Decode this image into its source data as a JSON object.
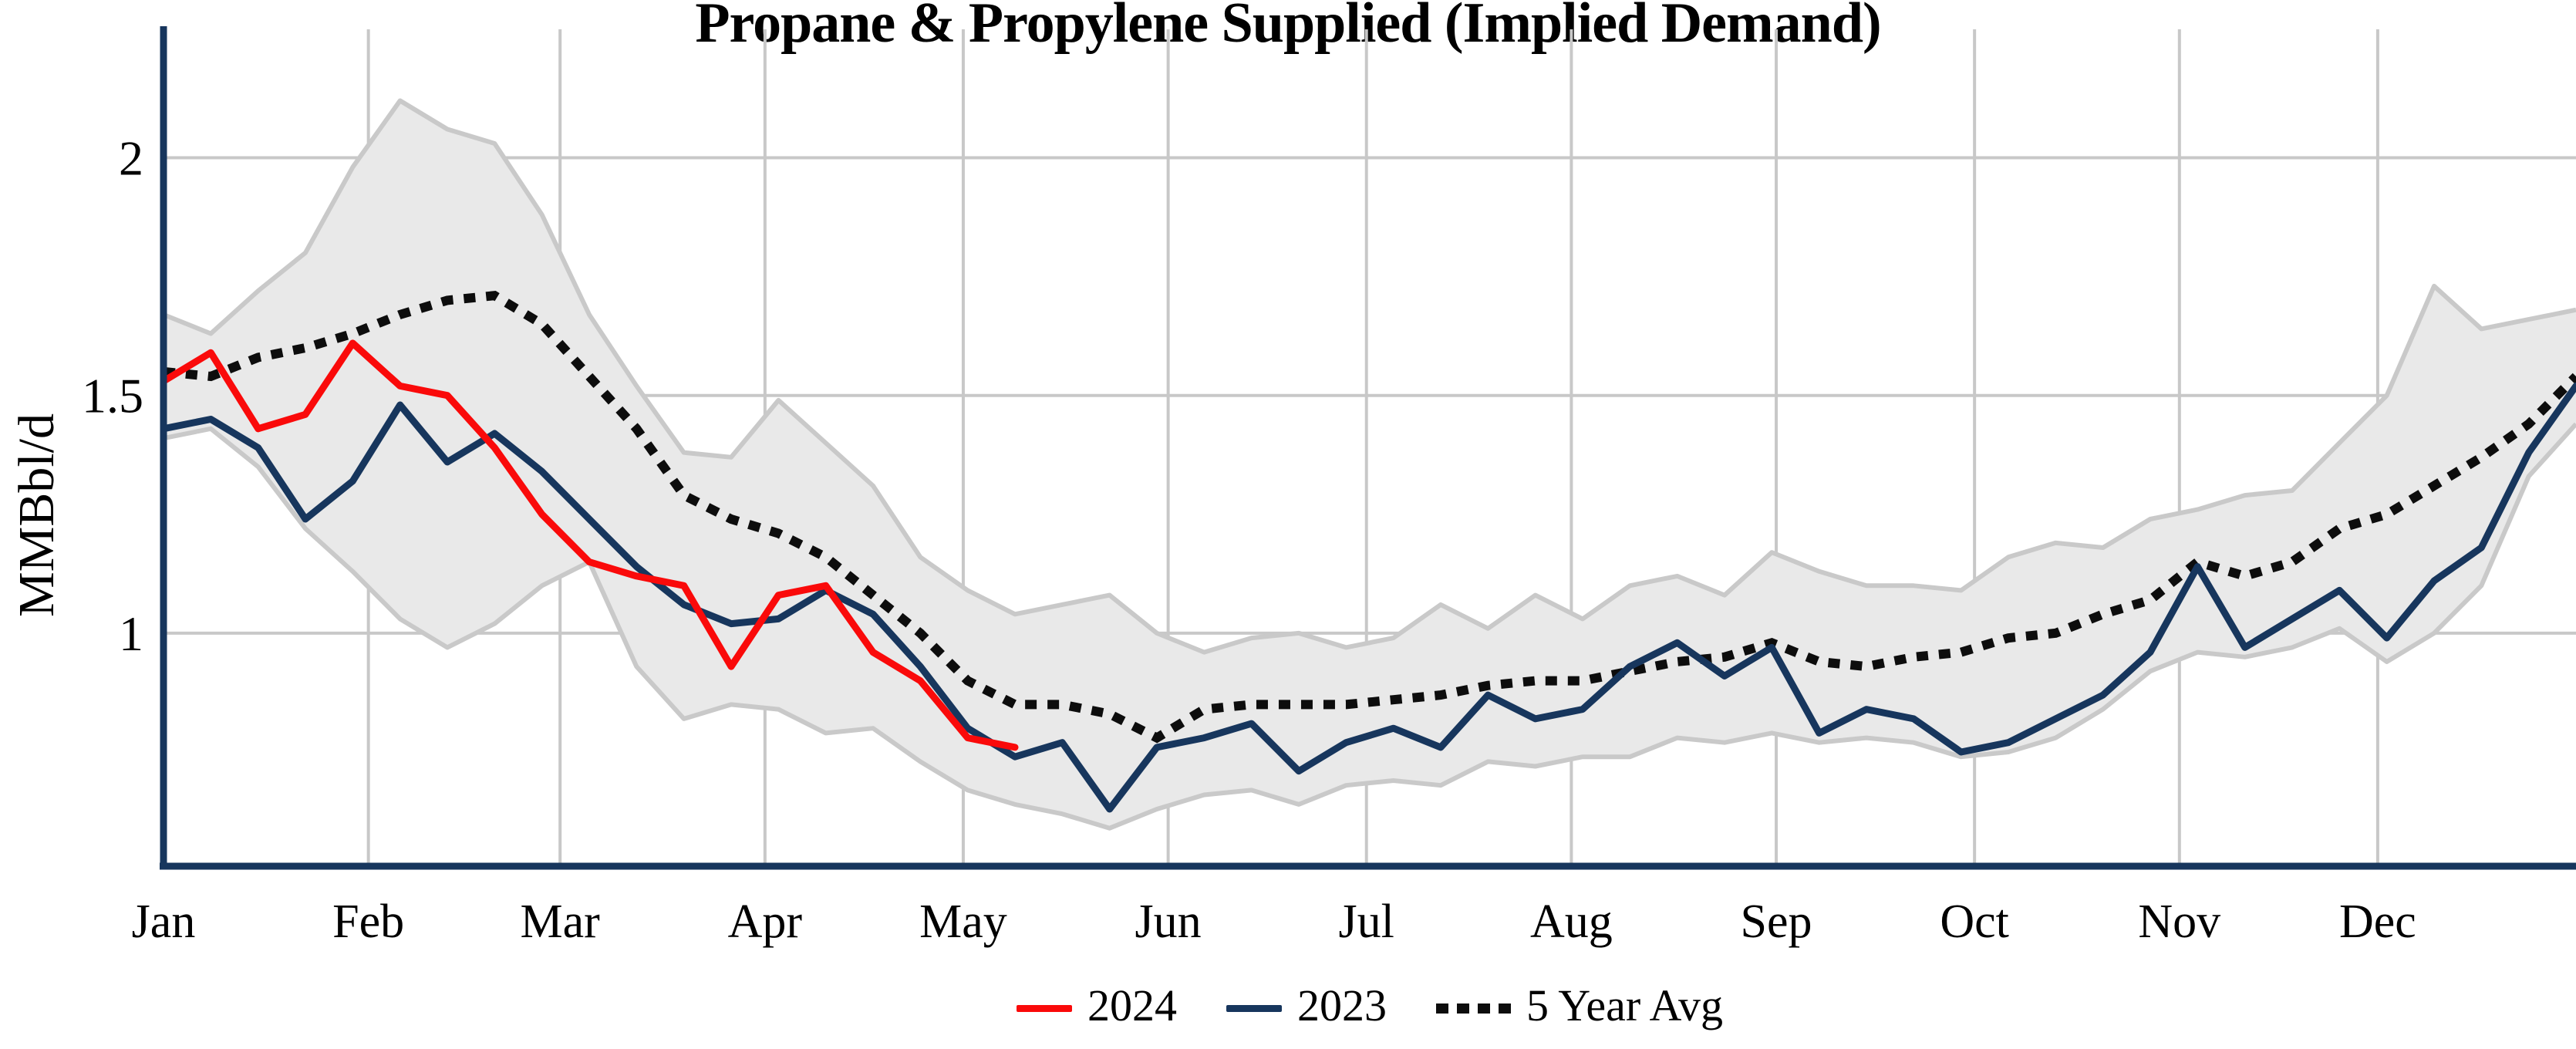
{
  "title": "Propane & Propylene Supplied (Implied Demand)",
  "y_axis": {
    "label": "MMBbl/d",
    "ticks": [
      {
        "label": "2",
        "value": 2.0
      },
      {
        "label": "1.5",
        "value": 1.5
      },
      {
        "label": "1",
        "value": 1.0
      }
    ]
  },
  "x_axis": {
    "months": [
      "Jan",
      "Feb",
      "Mar",
      "Apr",
      "May",
      "Jun",
      "Jul",
      "Aug",
      "Sep",
      "Oct",
      "Nov",
      "Dec"
    ]
  },
  "legend": {
    "items": [
      {
        "label": "2024",
        "style": "solid",
        "color": "#fa0a0a"
      },
      {
        "label": "2023",
        "style": "solid",
        "color": "#17365d"
      },
      {
        "label": "5 Year Avg",
        "style": "dotted",
        "color": "#0d0d0d"
      }
    ]
  },
  "colors": {
    "series_2024": "#fa0a0a",
    "series_2023": "#17365d",
    "series_avg": "#0d0d0d",
    "band_fill": "#e9e9e9",
    "band_edge": "#c9c9c9",
    "gridline": "#c8c8c8",
    "axis": "#17365d",
    "text": "#000000",
    "background": "#ffffff"
  },
  "chart_data": {
    "type": "line",
    "title": "Propane & Propylene Supplied (Implied Demand)",
    "xlabel": "",
    "ylabel": "MMBbl/d",
    "x_unit": "weekly, Jan through Dec",
    "ylim": [
      0.51,
      2.27
    ],
    "yticks": [
      1.0,
      1.5,
      2.0
    ],
    "grid": true,
    "legend_position": "bottom",
    "band": {
      "name": "5 year range",
      "upper": [
        1.67,
        1.63,
        1.72,
        1.8,
        1.98,
        2.12,
        2.06,
        2.03,
        1.88,
        1.67,
        1.52,
        1.38,
        1.37,
        1.49,
        1.4,
        1.31,
        1.16,
        1.09,
        1.04,
        1.06,
        1.08,
        1.0,
        0.96,
        0.99,
        1.0,
        0.97,
        0.99,
        1.06,
        1.01,
        1.08,
        1.03,
        1.1,
        1.12,
        1.08,
        1.17,
        1.13,
        1.1,
        1.1,
        1.09,
        1.16,
        1.19,
        1.18,
        1.24,
        1.26,
        1.29,
        1.3,
        1.4,
        1.5,
        1.73,
        1.64,
        1.66,
        1.68
      ],
      "lower": [
        1.41,
        1.43,
        1.35,
        1.22,
        1.13,
        1.03,
        0.97,
        1.02,
        1.1,
        1.15,
        0.93,
        0.82,
        0.85,
        0.84,
        0.79,
        0.8,
        0.73,
        0.67,
        0.64,
        0.62,
        0.59,
        0.63,
        0.66,
        0.67,
        0.64,
        0.68,
        0.69,
        0.68,
        0.73,
        0.72,
        0.74,
        0.74,
        0.78,
        0.77,
        0.79,
        0.77,
        0.78,
        0.77,
        0.74,
        0.75,
        0.78,
        0.84,
        0.92,
        0.96,
        0.95,
        0.97,
        1.01,
        0.94,
        1.0,
        1.1,
        1.33,
        1.44
      ]
    },
    "series": [
      {
        "name": "2024",
        "style": "solid",
        "color": "#fa0a0a",
        "values": [
          1.53,
          1.59,
          1.43,
          1.46,
          1.61,
          1.52,
          1.5,
          1.39,
          1.25,
          1.15,
          1.12,
          1.1,
          0.93,
          1.08,
          1.1,
          0.96,
          0.9,
          0.78,
          0.76
        ]
      },
      {
        "name": "2023",
        "style": "solid",
        "color": "#17365d",
        "values": [
          1.43,
          1.45,
          1.39,
          1.24,
          1.32,
          1.48,
          1.36,
          1.42,
          1.34,
          1.24,
          1.14,
          1.06,
          1.02,
          1.03,
          1.09,
          1.04,
          0.93,
          0.8,
          0.74,
          0.77,
          0.63,
          0.76,
          0.78,
          0.81,
          0.71,
          0.77,
          0.8,
          0.76,
          0.87,
          0.82,
          0.84,
          0.93,
          0.98,
          0.91,
          0.97,
          0.79,
          0.84,
          0.82,
          0.75,
          0.77,
          0.82,
          0.87,
          0.96,
          1.14,
          0.97,
          1.03,
          1.09,
          0.99,
          1.11,
          1.18,
          1.38,
          1.52
        ]
      },
      {
        "name": "5 Year Avg",
        "style": "dotted",
        "color": "#0d0d0d",
        "values": [
          1.55,
          1.54,
          1.58,
          1.6,
          1.63,
          1.67,
          1.7,
          1.71,
          1.65,
          1.54,
          1.43,
          1.29,
          1.24,
          1.21,
          1.16,
          1.08,
          1.0,
          0.9,
          0.85,
          0.85,
          0.83,
          0.78,
          0.84,
          0.85,
          0.85,
          0.85,
          0.86,
          0.87,
          0.89,
          0.9,
          0.9,
          0.92,
          0.94,
          0.95,
          0.98,
          0.94,
          0.93,
          0.95,
          0.96,
          0.99,
          1.0,
          1.04,
          1.07,
          1.15,
          1.12,
          1.15,
          1.22,
          1.25,
          1.31,
          1.37,
          1.44,
          1.54
        ]
      }
    ]
  }
}
